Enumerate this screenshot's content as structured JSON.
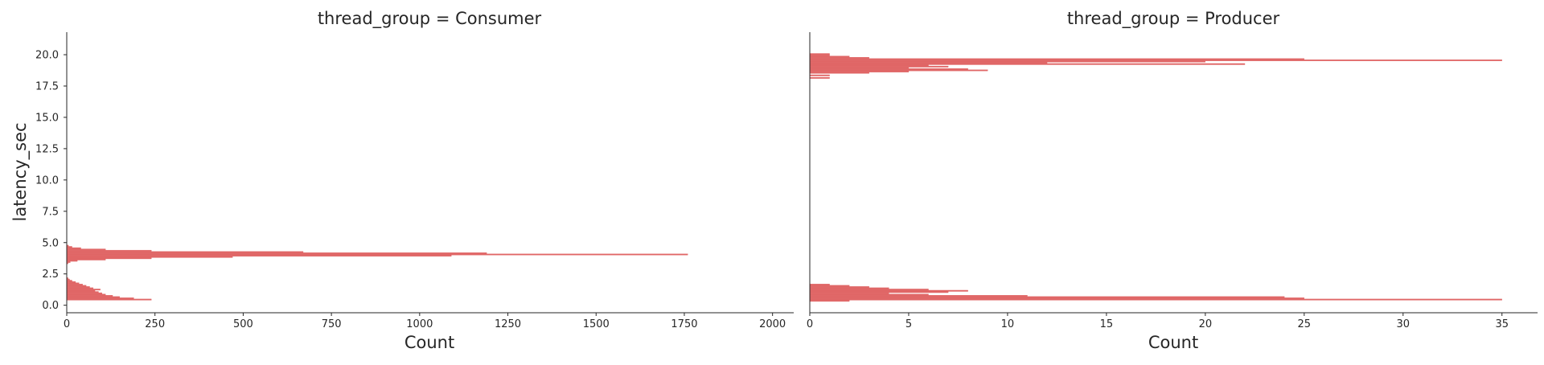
{
  "chart_data": [
    {
      "type": "histogram-horizontal",
      "title": "thread_group = Consumer",
      "xlabel": "Count",
      "ylabel": "latency_sec",
      "xlim": [
        0,
        2060
      ],
      "ylim": [
        -0.6,
        21.8
      ],
      "xticks": [
        0,
        250,
        500,
        750,
        1000,
        1250,
        1500,
        1750,
        2000
      ],
      "xtick_labels": [
        "0",
        "250",
        "500",
        "750",
        "1000",
        "1250",
        "1500",
        "1750",
        "2000"
      ],
      "yticks": [
        0,
        2.5,
        5,
        7.5,
        10,
        12.5,
        15,
        17.5,
        20
      ],
      "ytick_labels": [
        "0.0",
        "2.5",
        "5.0",
        "7.5",
        "10.0",
        "12.5",
        "15.0",
        "17.5",
        "20.0"
      ],
      "color": "#e06666",
      "grid": false,
      "bins": [
        {
          "y": 0.45,
          "count": 240
        },
        {
          "y": 0.55,
          "count": 190
        },
        {
          "y": 0.65,
          "count": 150
        },
        {
          "y": 0.75,
          "count": 130
        },
        {
          "y": 0.85,
          "count": 110
        },
        {
          "y": 0.95,
          "count": 100
        },
        {
          "y": 1.05,
          "count": 90
        },
        {
          "y": 1.15,
          "count": 80
        },
        {
          "y": 1.25,
          "count": 95
        },
        {
          "y": 1.35,
          "count": 75
        },
        {
          "y": 1.45,
          "count": 65
        },
        {
          "y": 1.55,
          "count": 55
        },
        {
          "y": 1.65,
          "count": 45
        },
        {
          "y": 1.75,
          "count": 35
        },
        {
          "y": 1.85,
          "count": 25
        },
        {
          "y": 1.95,
          "count": 15
        },
        {
          "y": 2.05,
          "count": 8
        },
        {
          "y": 2.15,
          "count": 4
        },
        {
          "y": 3.35,
          "count": 4
        },
        {
          "y": 3.45,
          "count": 10
        },
        {
          "y": 3.55,
          "count": 30
        },
        {
          "y": 3.65,
          "count": 110
        },
        {
          "y": 3.75,
          "count": 240
        },
        {
          "y": 3.85,
          "count": 470
        },
        {
          "y": 3.95,
          "count": 1090
        },
        {
          "y": 4.05,
          "count": 1760
        },
        {
          "y": 4.15,
          "count": 1190
        },
        {
          "y": 4.25,
          "count": 670
        },
        {
          "y": 4.35,
          "count": 240
        },
        {
          "y": 4.45,
          "count": 110
        },
        {
          "y": 4.55,
          "count": 40
        },
        {
          "y": 4.65,
          "count": 15
        },
        {
          "y": 4.75,
          "count": 5
        }
      ]
    },
    {
      "type": "histogram-horizontal",
      "title": "thread_group = Producer",
      "xlabel": "Count",
      "ylabel": "",
      "xlim": [
        0,
        36.8
      ],
      "ylim": [
        -0.6,
        21.8
      ],
      "xticks": [
        0,
        5,
        10,
        15,
        20,
        25,
        30,
        35
      ],
      "xtick_labels": [
        "0",
        "5",
        "10",
        "15",
        "20",
        "25",
        "30",
        "35"
      ],
      "color": "#e06666",
      "grid": false,
      "bins": [
        {
          "y": 0.35,
          "count": 2
        },
        {
          "y": 0.45,
          "count": 35
        },
        {
          "y": 0.55,
          "count": 25
        },
        {
          "y": 0.65,
          "count": 24
        },
        {
          "y": 0.75,
          "count": 11
        },
        {
          "y": 0.85,
          "count": 6
        },
        {
          "y": 0.95,
          "count": 4
        },
        {
          "y": 1.05,
          "count": 7
        },
        {
          "y": 1.15,
          "count": 8
        },
        {
          "y": 1.25,
          "count": 6
        },
        {
          "y": 1.35,
          "count": 4
        },
        {
          "y": 1.45,
          "count": 3
        },
        {
          "y": 1.55,
          "count": 2
        },
        {
          "y": 1.65,
          "count": 1
        },
        {
          "y": 18.15,
          "count": 1
        },
        {
          "y": 18.35,
          "count": 1
        },
        {
          "y": 18.55,
          "count": 3
        },
        {
          "y": 18.65,
          "count": 5
        },
        {
          "y": 18.75,
          "count": 9
        },
        {
          "y": 18.85,
          "count": 8
        },
        {
          "y": 18.95,
          "count": 5
        },
        {
          "y": 19.05,
          "count": 7
        },
        {
          "y": 19.15,
          "count": 6
        },
        {
          "y": 19.25,
          "count": 22
        },
        {
          "y": 19.35,
          "count": 12
        },
        {
          "y": 19.45,
          "count": 20
        },
        {
          "y": 19.55,
          "count": 35
        },
        {
          "y": 19.65,
          "count": 25
        },
        {
          "y": 19.75,
          "count": 3
        },
        {
          "y": 19.85,
          "count": 2
        },
        {
          "y": 19.95,
          "count": 1
        },
        {
          "y": 20.05,
          "count": 1
        }
      ]
    }
  ]
}
